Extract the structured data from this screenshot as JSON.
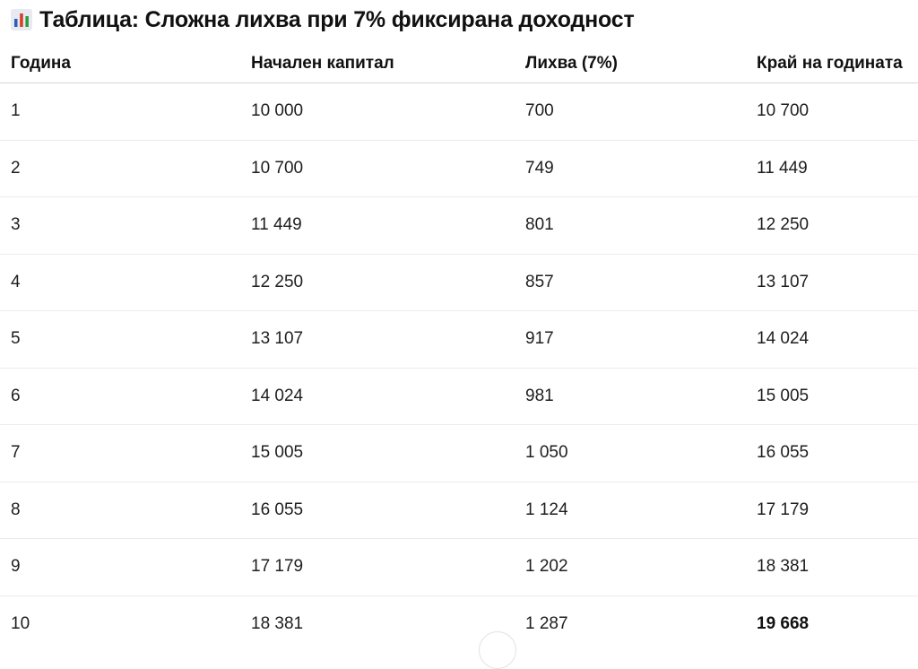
{
  "title": "Таблица: Сложна лихва при 7% фиксирана доходност",
  "icon": "bar-chart-icon",
  "colors": {
    "icon_bg": "#e7eaf0",
    "icon_bar_1": "#2b5fb8",
    "icon_bar_2": "#d93b2b",
    "icon_bar_3": "#2e9b3e"
  },
  "table": {
    "headers": [
      "Година",
      "Начален капитал",
      "Лихва (7%)",
      "Край на годината"
    ],
    "rows": [
      [
        "1",
        "10 000",
        "700",
        "10 700"
      ],
      [
        "2",
        "10 700",
        "749",
        "11 449"
      ],
      [
        "3",
        "11 449",
        "801",
        "12 250"
      ],
      [
        "4",
        "12 250",
        "857",
        "13 107"
      ],
      [
        "5",
        "13 107",
        "917",
        "14 024"
      ],
      [
        "6",
        "14 024",
        "981",
        "15 005"
      ],
      [
        "7",
        "15 005",
        "1 050",
        "16 055"
      ],
      [
        "8",
        "16 055",
        "1 124",
        "17 179"
      ],
      [
        "9",
        "17 179",
        "1 202",
        "18 381"
      ],
      [
        "10",
        "18 381",
        "1 287",
        "19 668"
      ]
    ]
  }
}
